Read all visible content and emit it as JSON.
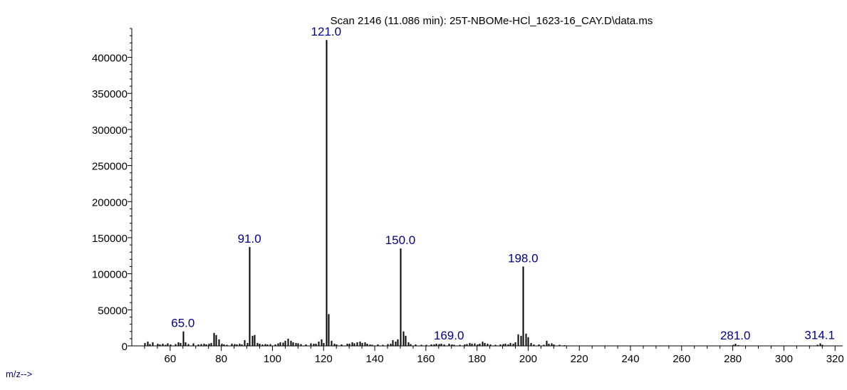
{
  "chart_data": {
    "type": "bar",
    "title": "Scan 2146 (11.086 min): 25T-NBOMe-HCl_1623-16_CAY.D\\data.ms",
    "xlabel": "m/z-->",
    "ylabel": "",
    "xlim": [
      45,
      323
    ],
    "ylim": [
      0,
      440000
    ],
    "grid": false,
    "x_ticks": [
      "60",
      "80",
      "100",
      "120",
      "140",
      "160",
      "180",
      "200",
      "220",
      "240",
      "260",
      "280",
      "300",
      "320"
    ],
    "y_ticks": [
      "0",
      "50000",
      "100000",
      "150000",
      "200000",
      "250000",
      "300000",
      "350000",
      "400000"
    ],
    "peak_label_color": "#00008b",
    "peaks": [
      {
        "x": 50,
        "y": 4000
      },
      {
        "x": 51,
        "y": 6000
      },
      {
        "x": 52,
        "y": 2500
      },
      {
        "x": 53,
        "y": 5000
      },
      {
        "x": 55,
        "y": 3000
      },
      {
        "x": 56,
        "y": 2000
      },
      {
        "x": 57,
        "y": 3000
      },
      {
        "x": 58,
        "y": 1500
      },
      {
        "x": 59,
        "y": 3500
      },
      {
        "x": 60,
        "y": 2000
      },
      {
        "x": 62,
        "y": 2500
      },
      {
        "x": 63,
        "y": 5000
      },
      {
        "x": 64,
        "y": 4000
      },
      {
        "x": 65,
        "y": 20000
      },
      {
        "x": 66,
        "y": 5000
      },
      {
        "x": 67,
        "y": 2500
      },
      {
        "x": 69,
        "y": 3500
      },
      {
        "x": 71,
        "y": 2000
      },
      {
        "x": 72,
        "y": 2500
      },
      {
        "x": 73,
        "y": 3000
      },
      {
        "x": 74,
        "y": 2000
      },
      {
        "x": 75,
        "y": 3000
      },
      {
        "x": 76,
        "y": 4000
      },
      {
        "x": 77,
        "y": 18000
      },
      {
        "x": 78,
        "y": 15000
      },
      {
        "x": 79,
        "y": 9000
      },
      {
        "x": 80,
        "y": 3000
      },
      {
        "x": 81,
        "y": 2000
      },
      {
        "x": 82,
        "y": 1500
      },
      {
        "x": 84,
        "y": 3000
      },
      {
        "x": 85,
        "y": 2500
      },
      {
        "x": 86,
        "y": 2000
      },
      {
        "x": 87,
        "y": 3000
      },
      {
        "x": 88,
        "y": 2000
      },
      {
        "x": 89,
        "y": 8000
      },
      {
        "x": 90,
        "y": 4000
      },
      {
        "x": 91,
        "y": 137000
      },
      {
        "x": 92,
        "y": 14000
      },
      {
        "x": 93,
        "y": 15000
      },
      {
        "x": 94,
        "y": 4000
      },
      {
        "x": 95,
        "y": 3000
      },
      {
        "x": 96,
        "y": 2000
      },
      {
        "x": 97,
        "y": 2500
      },
      {
        "x": 98,
        "y": 2000
      },
      {
        "x": 99,
        "y": 2500
      },
      {
        "x": 101,
        "y": 2000
      },
      {
        "x": 102,
        "y": 3500
      },
      {
        "x": 103,
        "y": 5000
      },
      {
        "x": 104,
        "y": 4500
      },
      {
        "x": 105,
        "y": 7000
      },
      {
        "x": 106,
        "y": 10000
      },
      {
        "x": 107,
        "y": 7000
      },
      {
        "x": 108,
        "y": 5000
      },
      {
        "x": 109,
        "y": 4000
      },
      {
        "x": 110,
        "y": 3500
      },
      {
        "x": 111,
        "y": 2500
      },
      {
        "x": 113,
        "y": 2000
      },
      {
        "x": 115,
        "y": 3500
      },
      {
        "x": 116,
        "y": 3000
      },
      {
        "x": 117,
        "y": 3000
      },
      {
        "x": 118,
        "y": 6000
      },
      {
        "x": 119,
        "y": 9000
      },
      {
        "x": 120,
        "y": 4000
      },
      {
        "x": 121,
        "y": 424000
      },
      {
        "x": 122,
        "y": 44000
      },
      {
        "x": 123,
        "y": 7000
      },
      {
        "x": 124,
        "y": 3000
      },
      {
        "x": 125,
        "y": 2000
      },
      {
        "x": 127,
        "y": 2000
      },
      {
        "x": 129,
        "y": 3000
      },
      {
        "x": 130,
        "y": 3000
      },
      {
        "x": 131,
        "y": 5000
      },
      {
        "x": 132,
        "y": 3500
      },
      {
        "x": 133,
        "y": 5000
      },
      {
        "x": 134,
        "y": 6000
      },
      {
        "x": 135,
        "y": 4000
      },
      {
        "x": 136,
        "y": 5000
      },
      {
        "x": 137,
        "y": 3000
      },
      {
        "x": 138,
        "y": 2000
      },
      {
        "x": 139,
        "y": 1500
      },
      {
        "x": 141,
        "y": 2000
      },
      {
        "x": 143,
        "y": 1500
      },
      {
        "x": 145,
        "y": 2500
      },
      {
        "x": 146,
        "y": 3000
      },
      {
        "x": 147,
        "y": 8000
      },
      {
        "x": 148,
        "y": 6000
      },
      {
        "x": 149,
        "y": 9000
      },
      {
        "x": 150,
        "y": 135000
      },
      {
        "x": 151,
        "y": 20000
      },
      {
        "x": 152,
        "y": 14000
      },
      {
        "x": 153,
        "y": 5000
      },
      {
        "x": 154,
        "y": 2500
      },
      {
        "x": 156,
        "y": 2000
      },
      {
        "x": 158,
        "y": 1500
      },
      {
        "x": 160,
        "y": 1500
      },
      {
        "x": 162,
        "y": 2000
      },
      {
        "x": 163,
        "y": 2000
      },
      {
        "x": 164,
        "y": 3000
      },
      {
        "x": 165,
        "y": 2500
      },
      {
        "x": 166,
        "y": 3000
      },
      {
        "x": 167,
        "y": 2000
      },
      {
        "x": 169,
        "y": 3000
      },
      {
        "x": 170,
        "y": 2000
      },
      {
        "x": 171,
        "y": 1500
      },
      {
        "x": 173,
        "y": 1500
      },
      {
        "x": 175,
        "y": 2000
      },
      {
        "x": 176,
        "y": 2500
      },
      {
        "x": 177,
        "y": 4000
      },
      {
        "x": 178,
        "y": 3000
      },
      {
        "x": 179,
        "y": 3500
      },
      {
        "x": 180,
        "y": 2000
      },
      {
        "x": 181,
        "y": 3000
      },
      {
        "x": 182,
        "y": 6000
      },
      {
        "x": 183,
        "y": 4000
      },
      {
        "x": 184,
        "y": 3000
      },
      {
        "x": 185,
        "y": 2000
      },
      {
        "x": 187,
        "y": 1500
      },
      {
        "x": 189,
        "y": 2000
      },
      {
        "x": 190,
        "y": 2500
      },
      {
        "x": 191,
        "y": 3000
      },
      {
        "x": 192,
        "y": 2000
      },
      {
        "x": 193,
        "y": 4000
      },
      {
        "x": 194,
        "y": 3000
      },
      {
        "x": 195,
        "y": 5000
      },
      {
        "x": 196,
        "y": 16000
      },
      {
        "x": 197,
        "y": 14000
      },
      {
        "x": 198,
        "y": 110000
      },
      {
        "x": 199,
        "y": 17000
      },
      {
        "x": 200,
        "y": 12000
      },
      {
        "x": 201,
        "y": 4000
      },
      {
        "x": 202,
        "y": 2000
      },
      {
        "x": 204,
        "y": 2000
      },
      {
        "x": 206,
        "y": 1500
      },
      {
        "x": 207,
        "y": 7000
      },
      {
        "x": 208,
        "y": 3000
      },
      {
        "x": 209,
        "y": 3500
      },
      {
        "x": 210,
        "y": 2000
      },
      {
        "x": 212,
        "y": 1500
      },
      {
        "x": 214,
        "y": 1000
      },
      {
        "x": 280,
        "y": 1500
      },
      {
        "x": 281,
        "y": 3000
      },
      {
        "x": 282,
        "y": 1000
      },
      {
        "x": 313,
        "y": 1500
      },
      {
        "x": 314,
        "y": 3500
      },
      {
        "x": 315,
        "y": 1500
      }
    ],
    "peak_labels": [
      {
        "x": 65,
        "y": 20000,
        "label": "65.0"
      },
      {
        "x": 91,
        "y": 137000,
        "label": "91.0"
      },
      {
        "x": 121,
        "y": 424000,
        "label": "121.0"
      },
      {
        "x": 150,
        "y": 135000,
        "label": "150.0"
      },
      {
        "x": 169,
        "y": 3000,
        "label": "169.0"
      },
      {
        "x": 198,
        "y": 110000,
        "label": "198.0"
      },
      {
        "x": 281,
        "y": 3000,
        "label": "281.0"
      },
      {
        "x": 314,
        "y": 3500,
        "label": "314.1"
      }
    ]
  }
}
